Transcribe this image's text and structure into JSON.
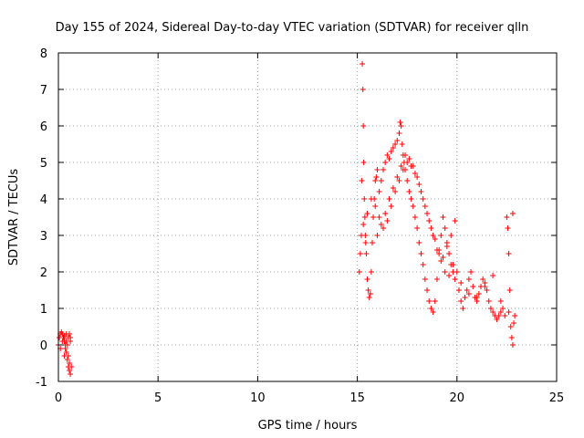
{
  "chart_data": {
    "type": "scatter",
    "title": "Day 155 of 2024, Sidereal Day-to-day VTEC variation (SDTVAR) for receiver qlln",
    "xlabel": "GPS time / hours",
    "ylabel": "SDTVAR / TECUs",
    "xlim": [
      0,
      25
    ],
    "ylim": [
      -1,
      8
    ],
    "xticks": [
      0,
      5,
      10,
      15,
      20,
      25
    ],
    "yticks": [
      -1,
      0,
      1,
      2,
      3,
      4,
      5,
      6,
      7,
      8
    ],
    "grid": true,
    "marker": "plus",
    "series": [
      {
        "name": "SDTVAR",
        "color": "#ff0000",
        "x": [
          0.0,
          0.05,
          0.1,
          0.15,
          0.2,
          0.25,
          0.3,
          0.35,
          0.4,
          0.45,
          0.5,
          0.55,
          0.6,
          0.65,
          0.1,
          0.2,
          0.3,
          0.4,
          0.5,
          0.55,
          0.6,
          0.3,
          0.35,
          0.4,
          0.45,
          0.5,
          0.55,
          0.6,
          15.1,
          15.15,
          15.2,
          15.22,
          15.25,
          15.28,
          15.3,
          15.32,
          15.35,
          15.38,
          15.4,
          15.42,
          15.45,
          15.5,
          15.55,
          15.6,
          15.65,
          15.7,
          15.75,
          15.8,
          15.85,
          15.9,
          15.95,
          16.0,
          16.1,
          16.2,
          16.3,
          16.4,
          16.5,
          16.6,
          16.7,
          16.8,
          16.9,
          17.0,
          17.1,
          17.15,
          17.2,
          17.25,
          17.3,
          17.35,
          17.4,
          17.5,
          17.6,
          17.7,
          17.8,
          17.9,
          18.0,
          18.1,
          18.2,
          18.3,
          18.4,
          18.5,
          18.6,
          18.7,
          18.8,
          18.9,
          19.0,
          19.1,
          19.2,
          19.3,
          19.4,
          19.5,
          19.6,
          19.7,
          19.8,
          19.9,
          20.0,
          20.1,
          20.2,
          20.3,
          20.4,
          20.5,
          20.6,
          20.7,
          20.8,
          20.9,
          21.0,
          21.1,
          21.2,
          21.3,
          21.4,
          21.5,
          21.6,
          21.7,
          21.8,
          21.9,
          22.0,
          22.1,
          22.2,
          22.3,
          22.4,
          22.5,
          22.55,
          22.6,
          22.65,
          22.7,
          22.75,
          22.8,
          22.85,
          22.9,
          15.3,
          15.5,
          15.7,
          15.9,
          16.1,
          16.3,
          16.5,
          16.7,
          16.9,
          17.1,
          17.3,
          17.5,
          17.7,
          17.9,
          18.1,
          18.3,
          18.5,
          18.7,
          18.9,
          19.1,
          19.3,
          19.5,
          19.7,
          19.9,
          16.0,
          16.2,
          16.4,
          16.6,
          16.8,
          17.0,
          17.2,
          17.4,
          17.6,
          17.8,
          18.0,
          18.2,
          18.4,
          18.6,
          18.8,
          19.0,
          19.2,
          19.4,
          19.6,
          19.8,
          20.2,
          20.6,
          21.0,
          21.4,
          21.8,
          22.2,
          22.6,
          22.8
        ],
        "y": [
          0.0,
          0.2,
          0.3,
          0.35,
          0.3,
          0.2,
          0.1,
          0.0,
          -0.2,
          -0.4,
          -0.6,
          -0.7,
          -0.8,
          -0.6,
          -0.1,
          0.1,
          0.25,
          0.3,
          0.2,
          0.3,
          0.2,
          -0.3,
          -0.1,
          0.1,
          0.0,
          -0.3,
          -0.5,
          0.1,
          2.0,
          2.5,
          3.0,
          4.5,
          7.7,
          7.0,
          6.0,
          5.0,
          4.0,
          3.5,
          3.0,
          2.8,
          2.5,
          1.8,
          1.5,
          1.3,
          1.4,
          2.0,
          2.8,
          3.5,
          4.0,
          4.5,
          4.6,
          4.8,
          4.2,
          4.5,
          4.8,
          5.0,
          5.2,
          5.1,
          5.3,
          5.4,
          5.5,
          5.6,
          5.8,
          6.1,
          6.0,
          5.5,
          5.2,
          5.0,
          4.8,
          4.5,
          4.2,
          4.0,
          3.8,
          3.5,
          3.2,
          2.8,
          2.5,
          2.2,
          1.8,
          1.5,
          1.2,
          1.0,
          0.9,
          1.2,
          1.8,
          2.5,
          3.0,
          3.5,
          3.2,
          2.8,
          2.5,
          2.2,
          2.0,
          1.8,
          2.0,
          1.5,
          1.2,
          1.0,
          1.3,
          1.5,
          1.8,
          2.0,
          1.6,
          1.3,
          1.2,
          1.4,
          1.6,
          1.8,
          1.7,
          1.5,
          1.2,
          1.0,
          0.9,
          0.8,
          0.7,
          0.8,
          0.9,
          1.0,
          0.8,
          3.5,
          3.2,
          2.5,
          1.5,
          0.5,
          0.2,
          0.0,
          0.6,
          0.8,
          3.3,
          3.6,
          4.0,
          3.8,
          3.5,
          3.2,
          3.4,
          3.8,
          4.2,
          4.5,
          4.8,
          5.0,
          4.9,
          4.7,
          4.4,
          4.0,
          3.6,
          3.2,
          2.9,
          2.6,
          2.4,
          2.7,
          3.0,
          3.4,
          3.0,
          3.3,
          3.6,
          4.0,
          4.3,
          4.6,
          4.9,
          5.2,
          5.1,
          4.9,
          4.6,
          4.2,
          3.8,
          3.4,
          3.0,
          2.6,
          2.3,
          2.0,
          1.9,
          2.2,
          1.7,
          1.4,
          1.3,
          1.6,
          1.9,
          1.2,
          0.9,
          3.6
        ]
      }
    ]
  }
}
